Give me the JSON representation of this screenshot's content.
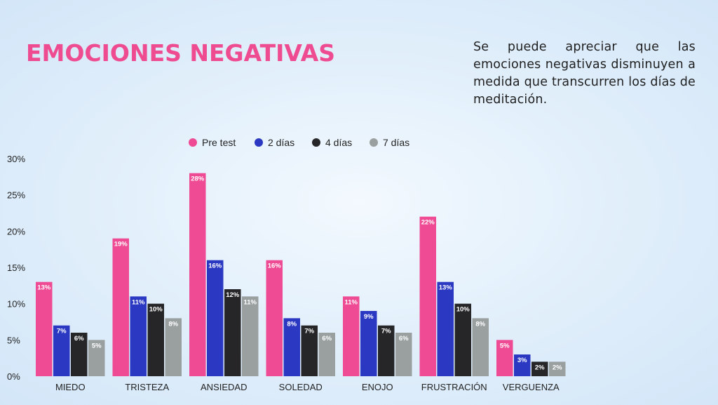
{
  "title": "EMOCIONES NEGATIVAS",
  "description": "Se puede apreciar que las emociones negativas disminuyen a medida que transcurren los días de meditación.",
  "colors": {
    "title": "#ee4b91",
    "pre_test": "#ef4b94",
    "dias_2": "#2a38c2",
    "dias_4": "#262628",
    "dias_7": "#9aa0a0",
    "axis_text": "#222222"
  },
  "chart_data": {
    "type": "bar",
    "title": "",
    "xlabel": "",
    "ylabel": "",
    "ylim": [
      0,
      30
    ],
    "yticks": [
      "0%",
      "5%",
      "10%",
      "15%",
      "20%",
      "25%",
      "30%"
    ],
    "ytick_values": [
      0,
      5,
      10,
      15,
      20,
      25,
      30
    ],
    "legend_position": "top-center",
    "categories": [
      "MIEDO",
      "TRISTEZA",
      "ANSIEDAD",
      "SOLEDAD",
      "ENOJO",
      "FRUSTRACIÓN",
      "VERGUENZA"
    ],
    "series": [
      {
        "name": "Pre test",
        "values": [
          13,
          19,
          28,
          16,
          11,
          22,
          5
        ],
        "labels": [
          "13%",
          "19%",
          "28%",
          "16%",
          "11%",
          "22%",
          "5%"
        ]
      },
      {
        "name": "2 días",
        "values": [
          7,
          11,
          16,
          8,
          9,
          13,
          3
        ],
        "labels": [
          "7%",
          "11%",
          "16%",
          "8%",
          "9%",
          "13%",
          "3%"
        ]
      },
      {
        "name": "4 días",
        "values": [
          6,
          10,
          12,
          7,
          7,
          10,
          2
        ],
        "labels": [
          "6%",
          "10%",
          "12%",
          "7%",
          "7%",
          "10%",
          "2%"
        ]
      },
      {
        "name": "7 días",
        "values": [
          5,
          8,
          11,
          6,
          6,
          8,
          2
        ],
        "labels": [
          "5%",
          "8%",
          "11%",
          "6%",
          "6%",
          "8%",
          "2%"
        ]
      }
    ]
  }
}
